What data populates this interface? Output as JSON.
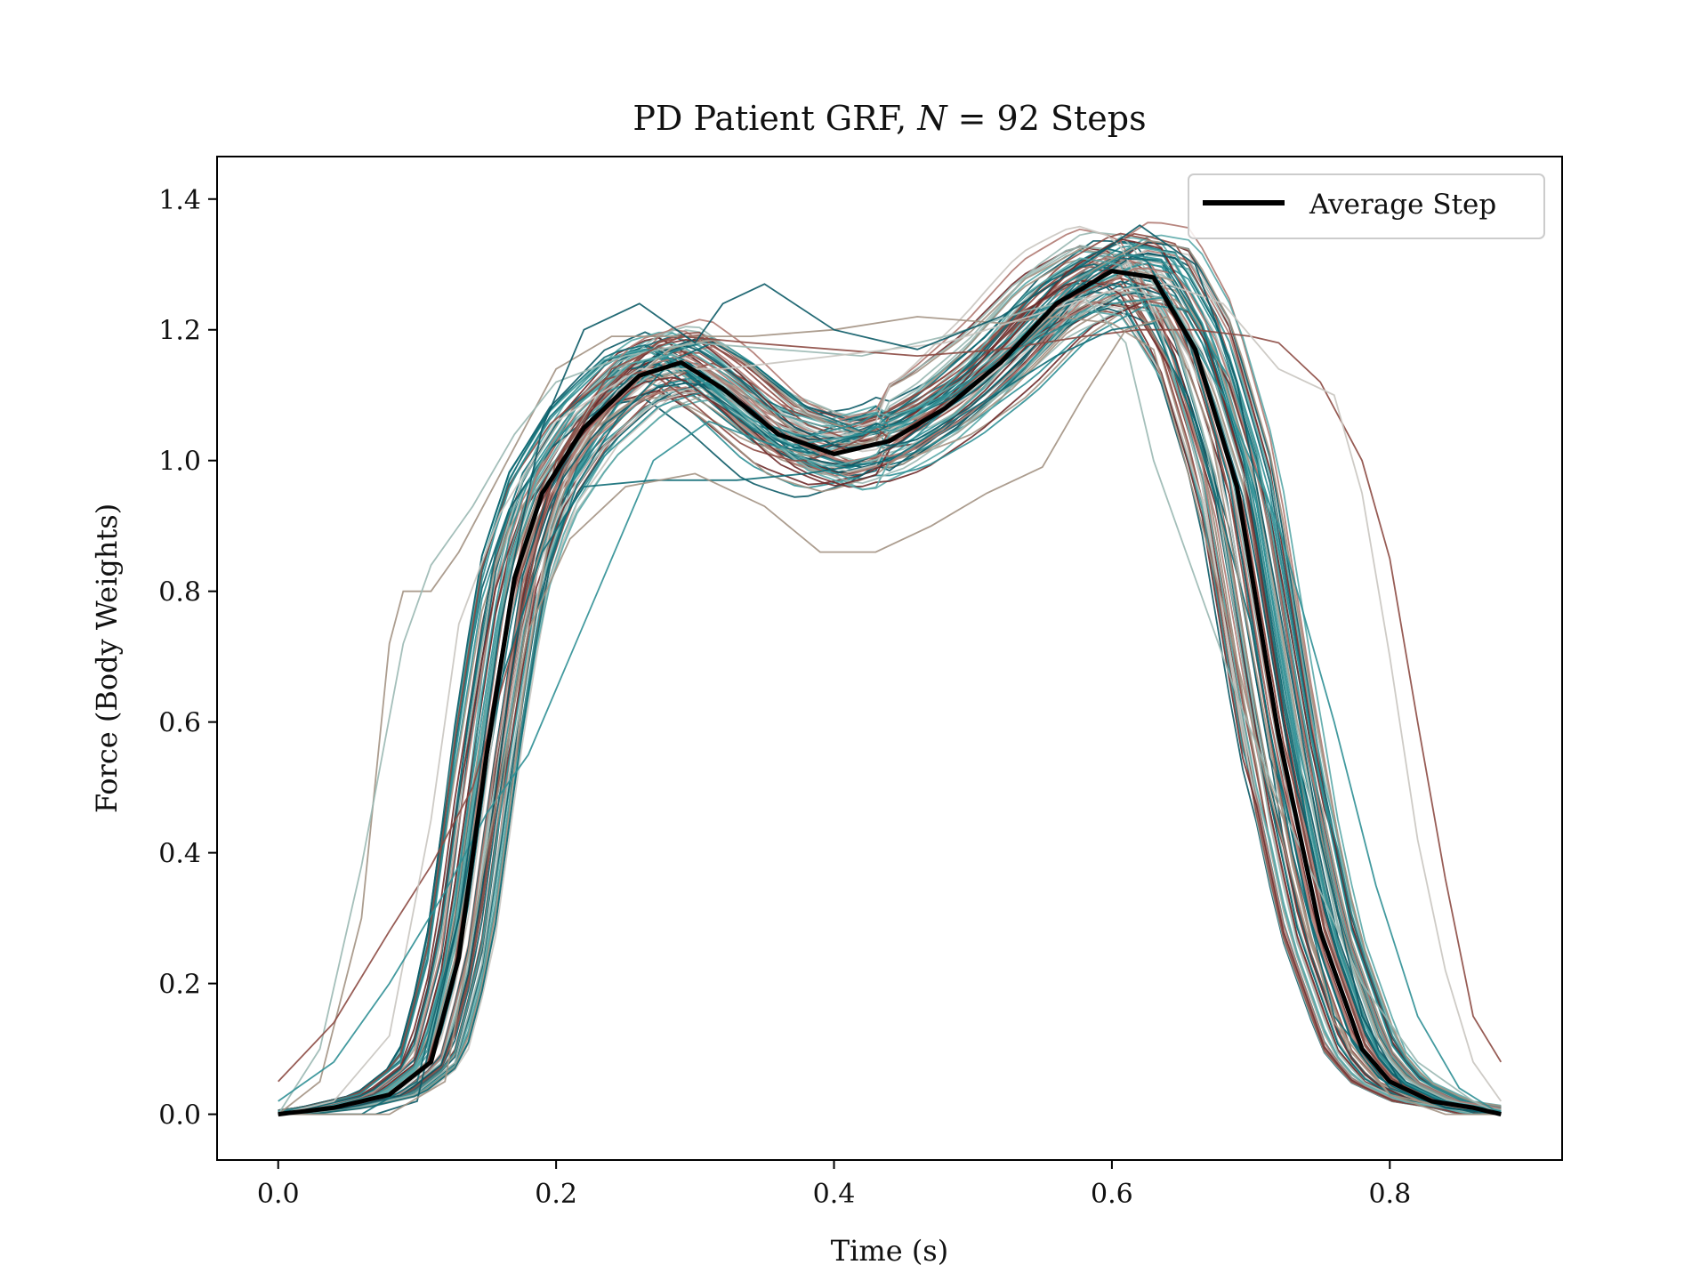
{
  "chart_data": {
    "type": "line",
    "title": "PD Patient GRF, N = 92 Steps",
    "title_parts": {
      "prefix": "PD Patient GRF, ",
      "var": "N",
      "suffix": " = 92 Steps"
    },
    "xlabel": "Time (s)",
    "ylabel": "Force (Body Weights)",
    "xlim": [
      -0.044,
      0.924
    ],
    "ylim": [
      -0.07,
      1.465
    ],
    "xticks": [
      0.0,
      0.2,
      0.4,
      0.6,
      0.8
    ],
    "xtick_labels": [
      "0.0",
      "0.2",
      "0.4",
      "0.6",
      "0.8"
    ],
    "yticks": [
      0.0,
      0.2,
      0.4,
      0.6,
      0.8,
      1.0,
      1.2,
      1.4
    ],
    "ytick_labels": [
      "0.0",
      "0.2",
      "0.4",
      "0.6",
      "0.8",
      "1.0",
      "1.2",
      "1.4"
    ],
    "grid": false,
    "legend": {
      "position": "top-right",
      "entries": [
        "Average Step"
      ]
    },
    "step_count": 92,
    "average_step": {
      "name": "Average Step",
      "color": "#000000",
      "x": [
        0.0,
        0.04,
        0.08,
        0.11,
        0.13,
        0.15,
        0.17,
        0.19,
        0.22,
        0.26,
        0.29,
        0.32,
        0.36,
        0.4,
        0.44,
        0.48,
        0.52,
        0.56,
        0.6,
        0.63,
        0.66,
        0.69,
        0.72,
        0.75,
        0.78,
        0.8,
        0.83,
        0.86,
        0.88
      ],
      "y": [
        0.0,
        0.01,
        0.03,
        0.08,
        0.24,
        0.55,
        0.82,
        0.95,
        1.05,
        1.13,
        1.15,
        1.11,
        1.04,
        1.01,
        1.03,
        1.08,
        1.15,
        1.24,
        1.29,
        1.28,
        1.17,
        0.96,
        0.58,
        0.28,
        0.1,
        0.05,
        0.02,
        0.01,
        0.0
      ]
    },
    "steps_summary": {
      "palette": [
        "#0b5a66",
        "#0e6b75",
        "#2f8f95",
        "#5aa8a8",
        "#9ab8b2",
        "#c9c5c0",
        "#a39283",
        "#8c4a42",
        "#6e2a2a",
        "#b07a72"
      ],
      "x": [
        0.0,
        0.04,
        0.08,
        0.11,
        0.13,
        0.15,
        0.17,
        0.19,
        0.22,
        0.26,
        0.29,
        0.32,
        0.36,
        0.4,
        0.44,
        0.48,
        0.52,
        0.56,
        0.6,
        0.63,
        0.66,
        0.69,
        0.72,
        0.75,
        0.78,
        0.8,
        0.83,
        0.86,
        0.88
      ]
    },
    "outlier_steps": [
      {
        "color": "#a39283",
        "points": [
          [
            0.0,
            0.0
          ],
          [
            0.03,
            0.05
          ],
          [
            0.06,
            0.3
          ],
          [
            0.08,
            0.72
          ],
          [
            0.09,
            0.8
          ],
          [
            0.11,
            0.8
          ],
          [
            0.13,
            0.86
          ],
          [
            0.16,
            0.98
          ],
          [
            0.2,
            1.14
          ],
          [
            0.24,
            1.19
          ],
          [
            0.29,
            1.19
          ],
          [
            0.34,
            1.19
          ],
          [
            0.4,
            1.2
          ],
          [
            0.46,
            1.22
          ],
          [
            0.52,
            1.21
          ],
          [
            0.56,
            1.22
          ],
          [
            0.6,
            1.21
          ],
          [
            0.63,
            1.17
          ],
          [
            0.65,
            1.02
          ],
          [
            0.68,
            0.78
          ],
          [
            0.71,
            0.52
          ],
          [
            0.74,
            0.28
          ],
          [
            0.77,
            0.1
          ],
          [
            0.8,
            0.03
          ],
          [
            0.84,
            0.01
          ],
          [
            0.88,
            0.0
          ]
        ]
      },
      {
        "color": "#9ab8b2",
        "points": [
          [
            0.0,
            0.0
          ],
          [
            0.03,
            0.1
          ],
          [
            0.06,
            0.38
          ],
          [
            0.09,
            0.72
          ],
          [
            0.11,
            0.84
          ],
          [
            0.14,
            0.93
          ],
          [
            0.17,
            1.04
          ],
          [
            0.2,
            1.12
          ],
          [
            0.25,
            1.16
          ],
          [
            0.3,
            1.18
          ],
          [
            0.36,
            1.17
          ],
          [
            0.42,
            1.16
          ],
          [
            0.48,
            1.19
          ],
          [
            0.54,
            1.23
          ],
          [
            0.58,
            1.25
          ],
          [
            0.61,
            1.18
          ],
          [
            0.63,
            1.0
          ],
          [
            0.66,
            0.82
          ],
          [
            0.69,
            0.64
          ],
          [
            0.72,
            0.48
          ],
          [
            0.75,
            0.34
          ],
          [
            0.78,
            0.2
          ],
          [
            0.82,
            0.08
          ],
          [
            0.86,
            0.02
          ],
          [
            0.88,
            0.0
          ]
        ]
      },
      {
        "color": "#8c4a42",
        "points": [
          [
            0.0,
            0.05
          ],
          [
            0.04,
            0.14
          ],
          [
            0.08,
            0.28
          ],
          [
            0.11,
            0.38
          ],
          [
            0.14,
            0.5
          ],
          [
            0.17,
            0.72
          ],
          [
            0.2,
            1.0
          ],
          [
            0.24,
            1.14
          ],
          [
            0.29,
            1.19
          ],
          [
            0.34,
            1.18
          ],
          [
            0.4,
            1.17
          ],
          [
            0.46,
            1.16
          ],
          [
            0.52,
            1.17
          ],
          [
            0.58,
            1.19
          ],
          [
            0.62,
            1.2
          ],
          [
            0.66,
            1.2
          ],
          [
            0.7,
            1.19
          ],
          [
            0.72,
            1.18
          ],
          [
            0.75,
            1.12
          ],
          [
            0.78,
            1.0
          ],
          [
            0.8,
            0.85
          ],
          [
            0.82,
            0.6
          ],
          [
            0.84,
            0.36
          ],
          [
            0.86,
            0.15
          ],
          [
            0.88,
            0.08
          ]
        ]
      },
      {
        "color": "#c9c5c0",
        "points": [
          [
            0.0,
            0.0
          ],
          [
            0.04,
            0.02
          ],
          [
            0.08,
            0.12
          ],
          [
            0.11,
            0.45
          ],
          [
            0.13,
            0.75
          ],
          [
            0.16,
            0.92
          ],
          [
            0.2,
            1.06
          ],
          [
            0.26,
            1.14
          ],
          [
            0.32,
            1.14
          ],
          [
            0.4,
            1.16
          ],
          [
            0.48,
            1.18
          ],
          [
            0.54,
            1.22
          ],
          [
            0.6,
            1.26
          ],
          [
            0.64,
            1.27
          ],
          [
            0.68,
            1.24
          ],
          [
            0.72,
            1.14
          ],
          [
            0.76,
            1.1
          ],
          [
            0.78,
            0.95
          ],
          [
            0.8,
            0.7
          ],
          [
            0.82,
            0.42
          ],
          [
            0.84,
            0.22
          ],
          [
            0.86,
            0.08
          ],
          [
            0.88,
            0.02
          ]
        ]
      },
      {
        "color": "#2f8f95",
        "points": [
          [
            0.0,
            0.02
          ],
          [
            0.04,
            0.08
          ],
          [
            0.08,
            0.2
          ],
          [
            0.12,
            0.34
          ],
          [
            0.15,
            0.46
          ],
          [
            0.18,
            0.55
          ],
          [
            0.2,
            0.65
          ],
          [
            0.23,
            0.8
          ],
          [
            0.27,
            1.0
          ],
          [
            0.31,
            1.06
          ],
          [
            0.36,
            1.02
          ],
          [
            0.42,
            1.04
          ],
          [
            0.48,
            1.1
          ],
          [
            0.54,
            1.18
          ],
          [
            0.6,
            1.24
          ],
          [
            0.64,
            1.25
          ],
          [
            0.68,
            1.1
          ],
          [
            0.72,
            0.9
          ],
          [
            0.76,
            0.6
          ],
          [
            0.79,
            0.35
          ],
          [
            0.82,
            0.15
          ],
          [
            0.85,
            0.04
          ],
          [
            0.88,
            0.0
          ]
        ]
      },
      {
        "color": "#0e6b75",
        "points": [
          [
            0.0,
            0.0
          ],
          [
            0.06,
            0.0
          ],
          [
            0.1,
            0.05
          ],
          [
            0.13,
            0.3
          ],
          [
            0.16,
            0.66
          ],
          [
            0.19,
            0.86
          ],
          [
            0.22,
            0.96
          ],
          [
            0.27,
            0.97
          ],
          [
            0.33,
            0.97
          ],
          [
            0.38,
            0.98
          ],
          [
            0.44,
            1.0
          ],
          [
            0.5,
            1.08
          ],
          [
            0.56,
            1.16
          ],
          [
            0.6,
            1.2
          ],
          [
            0.63,
            1.21
          ],
          [
            0.66,
            1.06
          ],
          [
            0.7,
            0.75
          ],
          [
            0.73,
            0.4
          ],
          [
            0.76,
            0.15
          ],
          [
            0.8,
            0.04
          ],
          [
            0.84,
            0.01
          ],
          [
            0.88,
            0.0
          ]
        ]
      },
      {
        "color": "#0b5a66",
        "points": [
          [
            0.0,
            0.0
          ],
          [
            0.07,
            0.0
          ],
          [
            0.1,
            0.02
          ],
          [
            0.13,
            0.3
          ],
          [
            0.16,
            0.75
          ],
          [
            0.19,
            1.05
          ],
          [
            0.22,
            1.2
          ],
          [
            0.26,
            1.24
          ],
          [
            0.3,
            1.18
          ],
          [
            0.32,
            1.24
          ],
          [
            0.35,
            1.27
          ],
          [
            0.4,
            1.2
          ],
          [
            0.46,
            1.17
          ],
          [
            0.52,
            1.22
          ],
          [
            0.58,
            1.3
          ],
          [
            0.62,
            1.36
          ],
          [
            0.66,
            1.3
          ],
          [
            0.69,
            1.12
          ],
          [
            0.72,
            0.78
          ],
          [
            0.75,
            0.42
          ],
          [
            0.78,
            0.15
          ],
          [
            0.81,
            0.04
          ],
          [
            0.84,
            0.01
          ],
          [
            0.88,
            0.0
          ]
        ]
      },
      {
        "color": "#a39283",
        "points": [
          [
            0.0,
            0.0
          ],
          [
            0.08,
            0.0
          ],
          [
            0.12,
            0.05
          ],
          [
            0.15,
            0.4
          ],
          [
            0.18,
            0.74
          ],
          [
            0.21,
            0.88
          ],
          [
            0.25,
            0.96
          ],
          [
            0.3,
            0.98
          ],
          [
            0.35,
            0.93
          ],
          [
            0.39,
            0.86
          ],
          [
            0.43,
            0.86
          ],
          [
            0.47,
            0.9
          ],
          [
            0.51,
            0.95
          ],
          [
            0.55,
            0.99
          ],
          [
            0.58,
            1.1
          ],
          [
            0.61,
            1.2
          ],
          [
            0.64,
            1.22
          ],
          [
            0.67,
            1.05
          ],
          [
            0.7,
            0.72
          ],
          [
            0.73,
            0.38
          ],
          [
            0.76,
            0.14
          ],
          [
            0.8,
            0.03
          ],
          [
            0.84,
            0.0
          ],
          [
            0.88,
            0.0
          ]
        ]
      }
    ]
  }
}
